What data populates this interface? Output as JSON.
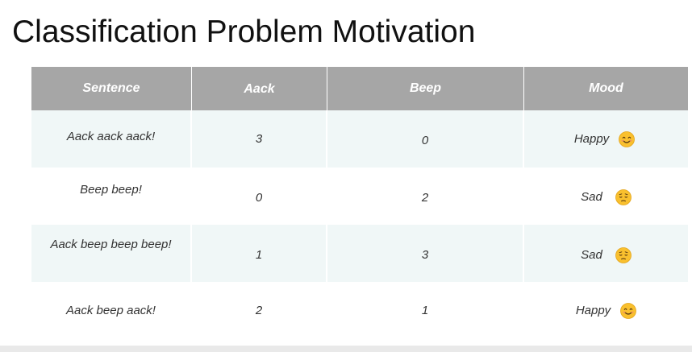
{
  "slide": {
    "title": "Classification Problem Motivation"
  },
  "table": {
    "headers": [
      "Sentence",
      "Aack",
      "Beep",
      "Mood"
    ],
    "rows": [
      {
        "sentence": "Aack aack aack!",
        "aack": "3",
        "beep": "0",
        "mood": "Happy",
        "mood_icon": "smiling-face-icon"
      },
      {
        "sentence": "Beep beep!",
        "aack": "0",
        "beep": "2",
        "mood": "Sad",
        "mood_icon": "pensive-face-icon"
      },
      {
        "sentence": "Aack beep beep beep!",
        "aack": "1",
        "beep": "3",
        "mood": "Sad",
        "mood_icon": "pensive-face-icon"
      },
      {
        "sentence": "Aack beep aack!",
        "aack": "2",
        "beep": "1",
        "mood": "Happy",
        "mood_icon": "smiling-face-icon"
      }
    ],
    "colors": {
      "header_bg": "#a6a6a6",
      "shaded_row_bg": "#f0f7f7",
      "emoji_yellow": "#f9c02e"
    }
  }
}
